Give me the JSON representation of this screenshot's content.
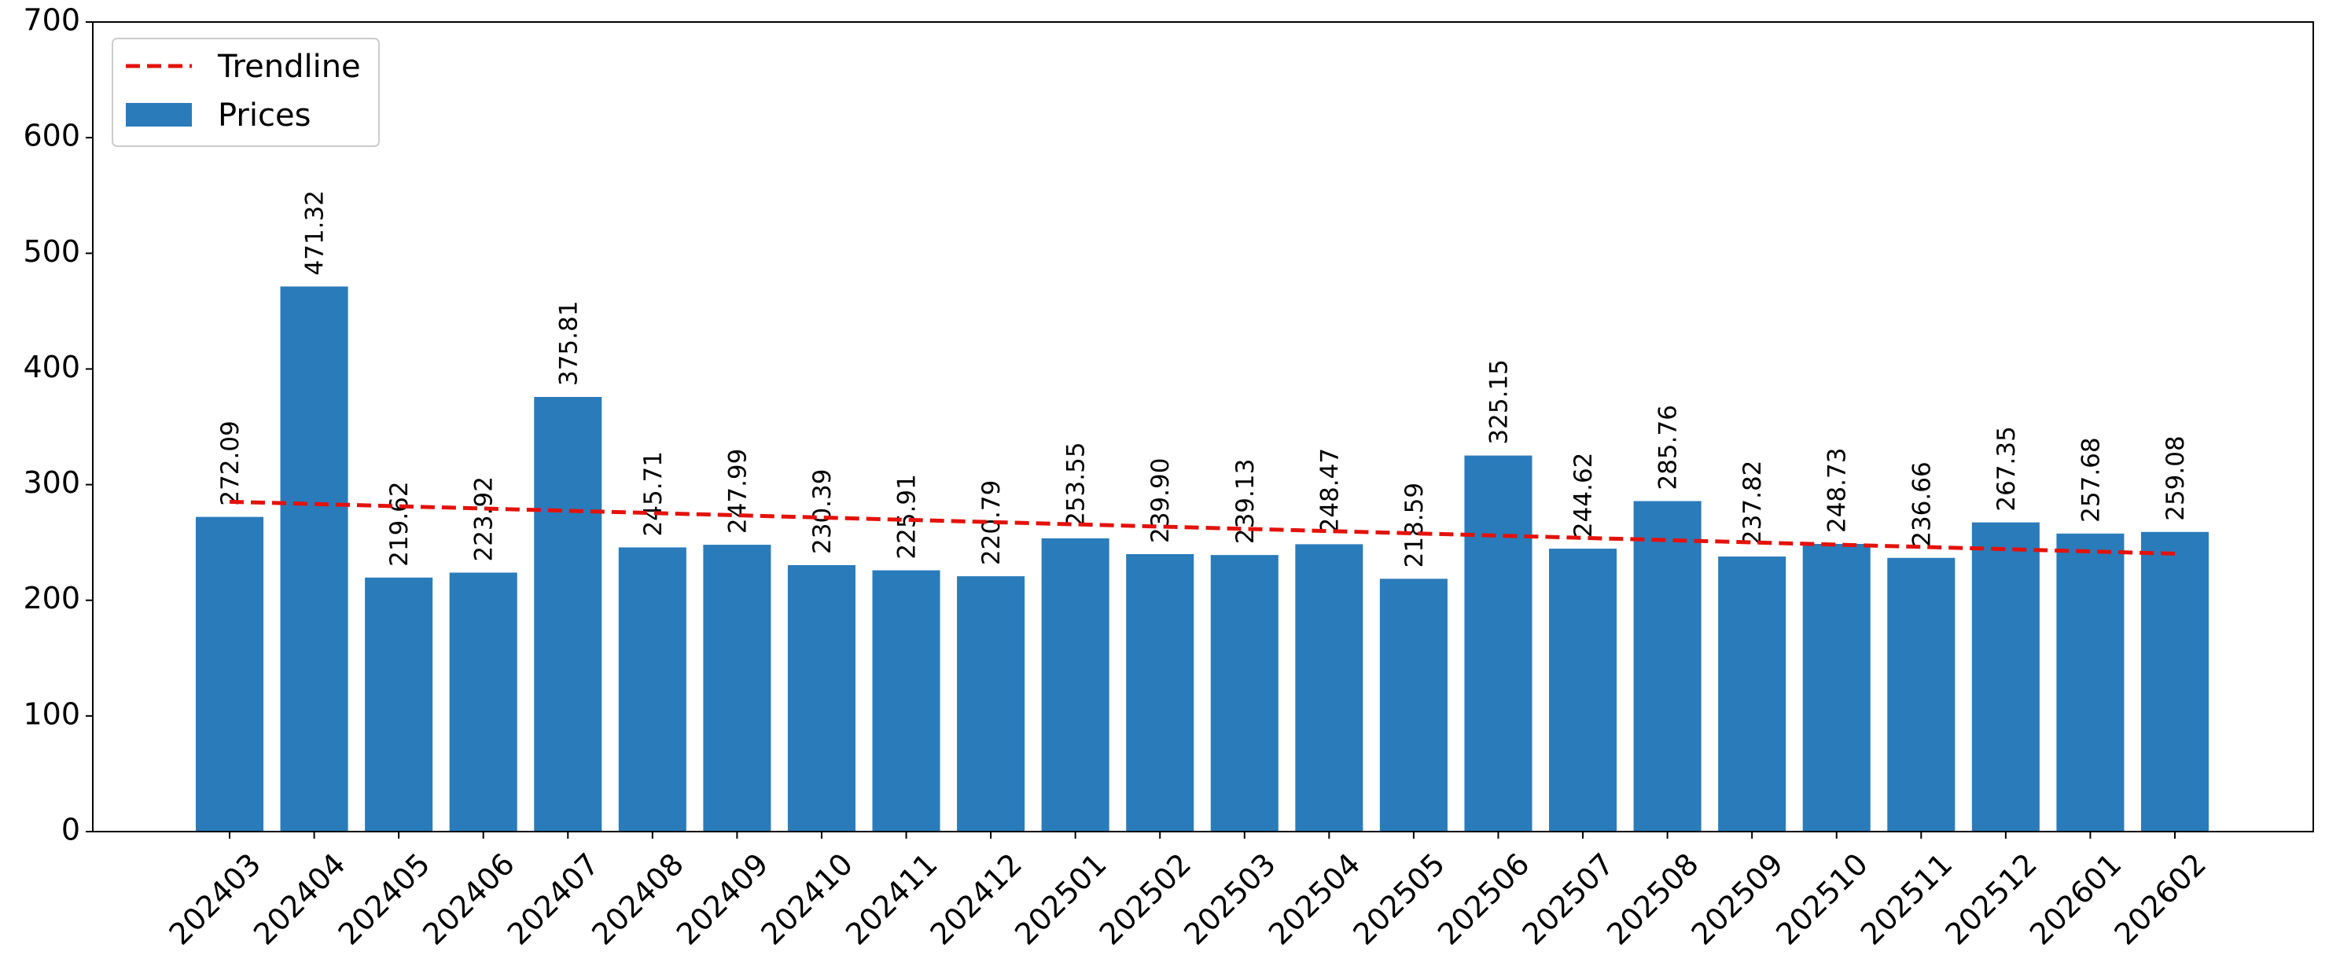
{
  "chart_data": {
    "type": "bar",
    "categories": [
      "202403",
      "202404",
      "202405",
      "202406",
      "202407",
      "202408",
      "202409",
      "202410",
      "202411",
      "202412",
      "202501",
      "202502",
      "202503",
      "202504",
      "202505",
      "202506",
      "202507",
      "202508",
      "202509",
      "202510",
      "202511",
      "202512",
      "202601",
      "202602"
    ],
    "series": [
      {
        "name": "Prices",
        "values": [
          272.09,
          471.32,
          219.62,
          223.92,
          375.81,
          245.71,
          247.99,
          230.39,
          225.91,
          220.79,
          253.55,
          239.9,
          239.13,
          248.47,
          218.59,
          325.15,
          244.62,
          285.76,
          237.82,
          248.73,
          236.66,
          267.35,
          257.68,
          259.08
        ],
        "labels": [
          "272.09",
          "471.32",
          "219.62",
          "223.92",
          "375.81",
          "245.71",
          "247.99",
          "230.39",
          "225.91",
          "220.79",
          "253.55",
          "239.90",
          "239.13",
          "248.47",
          "218.59",
          "325.15",
          "244.62",
          "285.76",
          "237.82",
          "248.73",
          "236.66",
          "267.35",
          "257.68",
          "259.08"
        ],
        "color": "#2a7bba"
      }
    ],
    "trendline": {
      "name": "Trendline",
      "start": 285.2,
      "end": 240.3,
      "color": "#e3120b",
      "style": "dashed"
    },
    "ylim": [
      0,
      700
    ],
    "yticks": [
      0,
      100,
      200,
      300,
      400,
      500,
      600,
      700
    ],
    "ytick_labels": [
      "0",
      "100",
      "200",
      "300",
      "400",
      "500",
      "600",
      "700"
    ],
    "title": "",
    "xlabel": "",
    "ylabel": "",
    "legend_position": "top-left",
    "legend": [
      "Trendline",
      "Prices"
    ],
    "grid": false
  }
}
